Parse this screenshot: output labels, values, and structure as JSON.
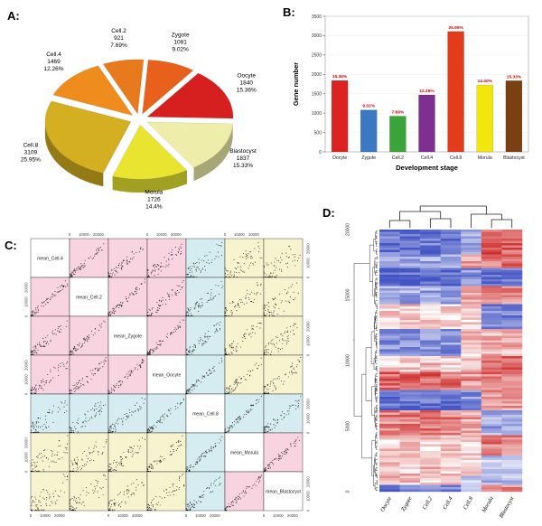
{
  "panels": {
    "a": {
      "label": "A:"
    },
    "b": {
      "label": "B:"
    },
    "c": {
      "label": "C:"
    },
    "d": {
      "label": "D:"
    }
  },
  "chart_data": [
    {
      "id": "stage-pie",
      "type": "pie",
      "slices": [
        {
          "label": "Zygote",
          "count": "1081",
          "pct": 9.02,
          "pct_label": "9.02%",
          "color": "#e8611c"
        },
        {
          "label": "Oocyte",
          "count": "1840",
          "pct": 15.36,
          "pct_label": "15.36%",
          "color": "#d62020"
        },
        {
          "label": "Blastocyst",
          "count": "1837",
          "pct": 15.33,
          "pct_label": "15.33%",
          "color": "#efedaa"
        },
        {
          "label": "Morula",
          "count": "1726",
          "pct": 14.4,
          "pct_label": "14.4%",
          "color": "#e8e430"
        },
        {
          "label": "Cell.8",
          "count": "3109",
          "pct": 25.95,
          "pct_label": "25.95%",
          "color": "#d4af21"
        },
        {
          "label": "Cell.4",
          "count": "1469",
          "pct": 12.26,
          "pct_label": "12.26%",
          "color": "#ee8c1e"
        },
        {
          "label": "Cell.2",
          "count": "921",
          "pct": 7.69,
          "pct_label": "7.69%",
          "color": "#e77a1d"
        }
      ]
    },
    {
      "id": "gene-number-bar",
      "type": "bar",
      "categories": [
        "Oocyte",
        "Zygote",
        "Cell.2",
        "Cell.4",
        "Cell.8",
        "Morula",
        "Blastocyst"
      ],
      "values": [
        1840,
        1081,
        921,
        1469,
        3109,
        1726,
        1837
      ],
      "bar_labels": [
        "15.36%",
        "9.02%",
        "7.69%",
        "12.26%",
        "25.95%",
        "14.40%",
        "15.33%"
      ],
      "colors": [
        "#dd2222",
        "#3b78c3",
        "#3aa33a",
        "#7d3090",
        "#e23c1c",
        "#f2e60e",
        "#7a4012"
      ],
      "label_color": "#cc0000",
      "xlabel": "Development stage",
      "ylabel": "Gene number",
      "ylim": [
        0,
        3500
      ],
      "yticks": [
        0,
        500,
        1000,
        1500,
        2000,
        2500,
        3000,
        3500
      ]
    },
    {
      "id": "pairs-scatter-matrix",
      "type": "scatter",
      "variables": [
        "mean_Cell.4",
        "mean_Cell.2",
        "mean_Zygote",
        "mean_Oocyte",
        "mean_Cell.8",
        "mean_Morula",
        "mean_Blastocyst"
      ],
      "axis_ticks": [
        0,
        10000,
        20000
      ],
      "axis_max": 27000,
      "bg_colors": {
        "within_group": "#f7d4df",
        "cell8_pair": "#d5ecf0",
        "cross_group": "#f7f3cf",
        "diagonal": "#ffffff"
      },
      "groups": {
        "early": [
          0,
          1,
          2,
          3
        ],
        "cell8": [
          4
        ],
        "late": [
          5,
          6
        ]
      }
    },
    {
      "id": "cluster-heatmap",
      "type": "heatmap",
      "columns": [
        "Oocyte",
        "Zygote",
        "Cell.2",
        "Cell.4",
        "Cell.8",
        "Morula",
        "Blastocyst"
      ],
      "yticks": [
        0,
        5000,
        10000,
        15000,
        20000
      ],
      "colors": {
        "low": "#4455c4",
        "mid": "#ffffff",
        "high": "#d03030"
      },
      "column_dendrogram": "(((Oocyte,Zygote),(Cell.2,Cell.4)),((Cell.8),(Morula,Blastocyst)))"
    }
  ]
}
